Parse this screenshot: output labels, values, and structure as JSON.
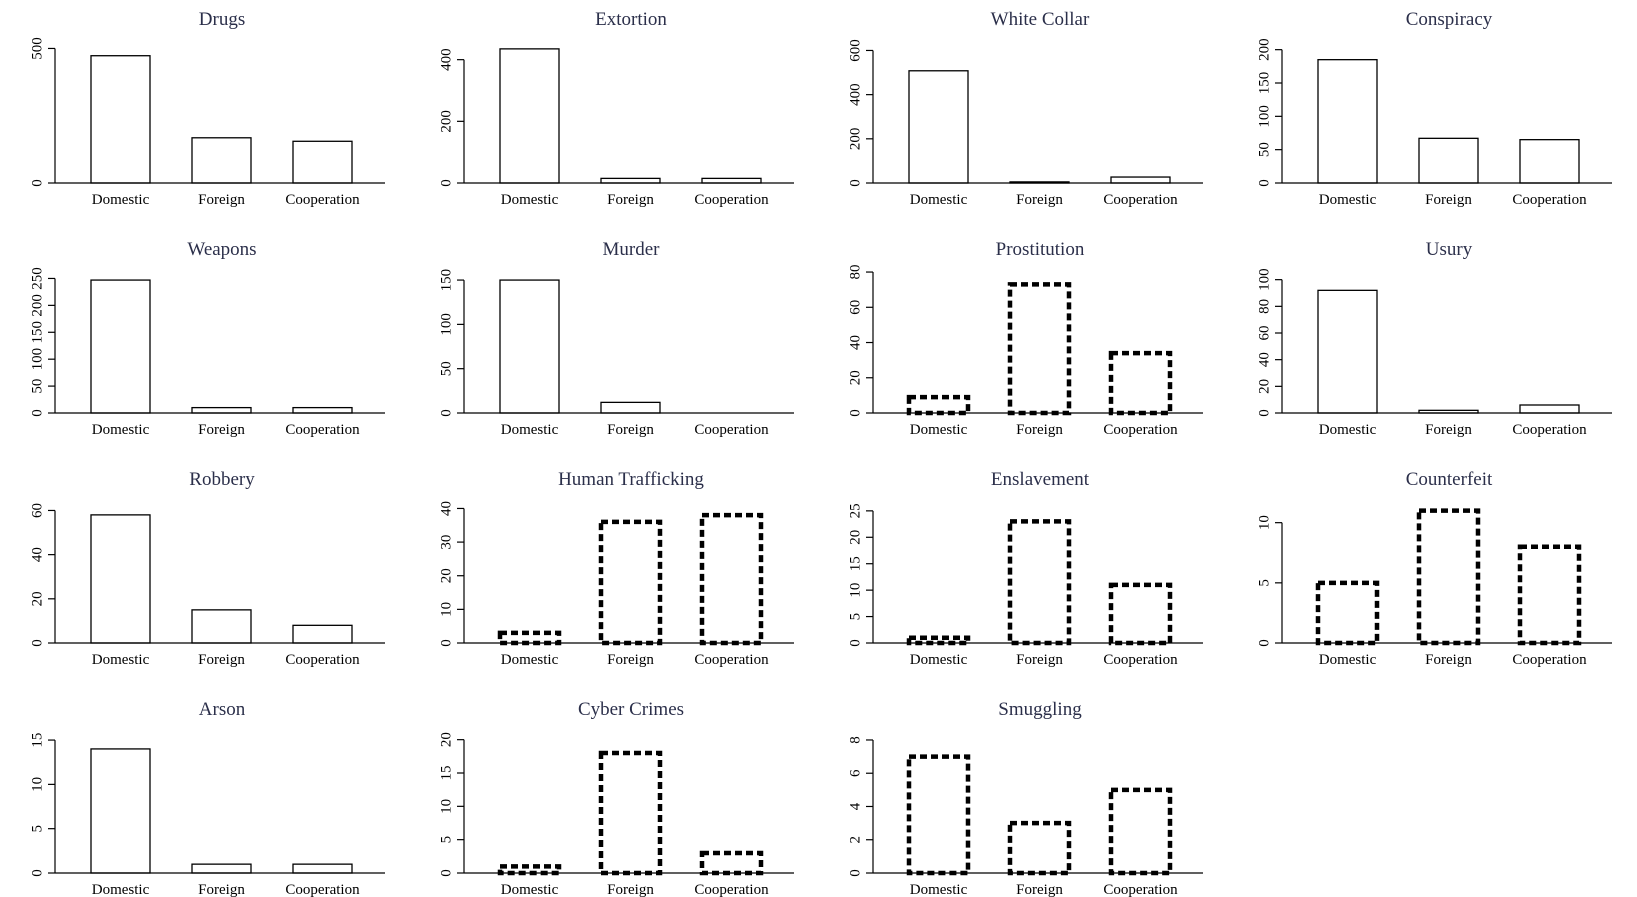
{
  "chart_data": [
    {
      "type": "bar",
      "title": "Drugs",
      "categories": [
        "Domestic",
        "Foreign",
        "Cooperation"
      ],
      "values": [
        473,
        168,
        155
      ],
      "ylim": [
        0,
        550
      ],
      "yticks": [
        0,
        500
      ],
      "style": "solid"
    },
    {
      "type": "bar",
      "title": "Extortion",
      "categories": [
        "Domestic",
        "Foreign",
        "Cooperation"
      ],
      "values": [
        435,
        15,
        15
      ],
      "ylim": [
        0,
        480
      ],
      "yticks": [
        0,
        200,
        400
      ],
      "style": "solid"
    },
    {
      "type": "bar",
      "title": "White Collar",
      "categories": [
        "Domestic",
        "Foreign",
        "Cooperation"
      ],
      "values": [
        508,
        5,
        27
      ],
      "ylim": [
        0,
        670
      ],
      "yticks": [
        0,
        200,
        400,
        600
      ],
      "style": "solid"
    },
    {
      "type": "bar",
      "title": "Conspiracy",
      "categories": [
        "Domestic",
        "Foreign",
        "Cooperation"
      ],
      "values": [
        185,
        67,
        65
      ],
      "ylim": [
        0,
        222
      ],
      "yticks": [
        0,
        50,
        100,
        150,
        200
      ],
      "style": "solid"
    },
    {
      "type": "bar",
      "title": "Weapons",
      "categories": [
        "Domestic",
        "Foreign",
        "Cooperation"
      ],
      "values": [
        247,
        10,
        10
      ],
      "ylim": [
        0,
        275
      ],
      "yticks": [
        0,
        50,
        100,
        150,
        200,
        250
      ],
      "style": "solid"
    },
    {
      "type": "bar",
      "title": "Murder",
      "categories": [
        "Domestic",
        "Foreign",
        "Cooperation"
      ],
      "values": [
        150,
        12,
        0
      ],
      "ylim": [
        0,
        167
      ],
      "yticks": [
        0,
        50,
        100,
        150
      ],
      "style": "solid"
    },
    {
      "type": "bar",
      "title": "Prostitution",
      "categories": [
        "Domestic",
        "Foreign",
        "Cooperation"
      ],
      "values": [
        9,
        73,
        34
      ],
      "ylim": [
        0,
        84
      ],
      "yticks": [
        0,
        20,
        40,
        60,
        80
      ],
      "style": "dashed"
    },
    {
      "type": "bar",
      "title": "Usury",
      "categories": [
        "Domestic",
        "Foreign",
        "Cooperation"
      ],
      "values": [
        92,
        2,
        6
      ],
      "ylim": [
        0,
        111
      ],
      "yticks": [
        20,
        40,
        60,
        80,
        100,
        0
      ],
      "style": "solid"
    },
    {
      "type": "bar",
      "title": "Robbery",
      "categories": [
        "Domestic",
        "Foreign",
        "Cooperation"
      ],
      "values": [
        58,
        15,
        8
      ],
      "ylim": [
        0,
        67
      ],
      "yticks": [
        0,
        20,
        40,
        60
      ],
      "style": "solid"
    },
    {
      "type": "bar",
      "title": "Human Trafficking",
      "categories": [
        "Domestic",
        "Foreign",
        "Cooperation"
      ],
      "values": [
        3,
        36,
        38
      ],
      "ylim": [
        0,
        44
      ],
      "yticks": [
        0,
        10,
        20,
        30,
        40
      ],
      "style": "dashed"
    },
    {
      "type": "bar",
      "title": "Enslavement",
      "categories": [
        "Domestic",
        "Foreign",
        "Cooperation"
      ],
      "values": [
        1,
        23,
        11
      ],
      "ylim": [
        0,
        28
      ],
      "yticks": [
        0,
        5,
        10,
        15,
        20,
        25
      ],
      "style": "dashed"
    },
    {
      "type": "bar",
      "title": "Counterfeit",
      "categories": [
        "Domestic",
        "Foreign",
        "Cooperation"
      ],
      "values": [
        5,
        11,
        8
      ],
      "ylim": [
        0,
        12.3
      ],
      "yticks": [
        0,
        5,
        10
      ],
      "style": "dashed"
    },
    {
      "type": "bar",
      "title": "Arson",
      "categories": [
        "Domestic",
        "Foreign",
        "Cooperation"
      ],
      "values": [
        14,
        1,
        1
      ],
      "ylim": [
        0,
        16.7
      ],
      "yticks": [
        0,
        5,
        10,
        15
      ],
      "style": "solid"
    },
    {
      "type": "bar",
      "title": "Cyber Crimes",
      "categories": [
        "Domestic",
        "Foreign",
        "Cooperation"
      ],
      "values": [
        1,
        18,
        3
      ],
      "ylim": [
        0,
        22.2
      ],
      "yticks": [
        0,
        5,
        10,
        15,
        20
      ],
      "style": "dashed"
    },
    {
      "type": "bar",
      "title": "Smuggling",
      "categories": [
        "Domestic",
        "Foreign",
        "Cooperation"
      ],
      "values": [
        7,
        3,
        5
      ],
      "ylim": [
        0,
        8.9
      ],
      "yticks": [
        0,
        2,
        4,
        6,
        8
      ],
      "style": "dashed"
    }
  ]
}
